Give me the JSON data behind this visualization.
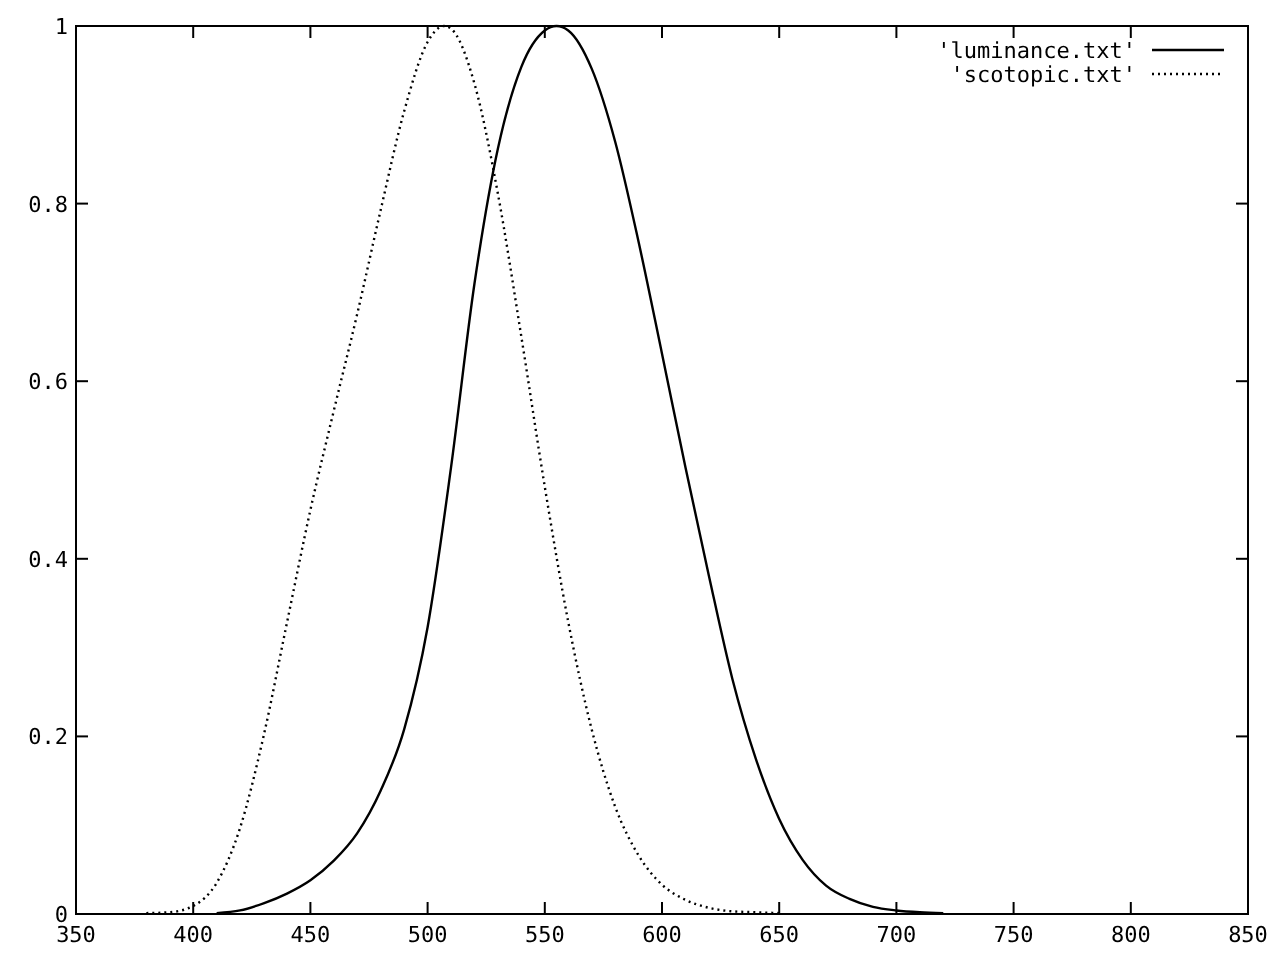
{
  "chart_data": {
    "type": "line",
    "xlim": [
      350,
      850
    ],
    "ylim": [
      0,
      1
    ],
    "xticks": [
      350,
      400,
      450,
      500,
      550,
      600,
      650,
      700,
      750,
      800,
      850
    ],
    "yticks": [
      0,
      0.2,
      0.4,
      0.6,
      0.8,
      1
    ],
    "grid": false,
    "legend": "top right",
    "series": [
      {
        "name": "'luminance.txt'",
        "color": "#000000",
        "line_style": "solid",
        "x": [
          410,
          420,
          430,
          440,
          450,
          460,
          470,
          480,
          490,
          500,
          510,
          520,
          530,
          540,
          550,
          555,
          560,
          570,
          580,
          590,
          600,
          610,
          620,
          630,
          640,
          650,
          660,
          670,
          680,
          690,
          700,
          710,
          720
        ],
        "values": [
          0.001,
          0.004,
          0.012,
          0.023,
          0.038,
          0.06,
          0.091,
          0.139,
          0.208,
          0.323,
          0.503,
          0.71,
          0.862,
          0.954,
          0.995,
          1.0,
          0.995,
          0.952,
          0.87,
          0.757,
          0.631,
          0.503,
          0.381,
          0.265,
          0.175,
          0.107,
          0.061,
          0.032,
          0.017,
          0.008,
          0.004,
          0.002,
          0.001
        ]
      },
      {
        "name": "'scotopic.txt'",
        "color": "#000000",
        "line_style": "dotted",
        "x": [
          380,
          390,
          400,
          410,
          420,
          430,
          440,
          450,
          460,
          470,
          480,
          490,
          500,
          507,
          510,
          520,
          530,
          540,
          550,
          560,
          570,
          580,
          590,
          600,
          610,
          620,
          630,
          640,
          650
        ],
        "values": [
          0.001,
          0.002,
          0.009,
          0.035,
          0.097,
          0.2,
          0.328,
          0.455,
          0.567,
          0.676,
          0.793,
          0.904,
          0.982,
          1.0,
          0.997,
          0.935,
          0.811,
          0.65,
          0.481,
          0.329,
          0.208,
          0.121,
          0.066,
          0.033,
          0.016,
          0.007,
          0.003,
          0.002,
          0.001
        ]
      }
    ]
  }
}
